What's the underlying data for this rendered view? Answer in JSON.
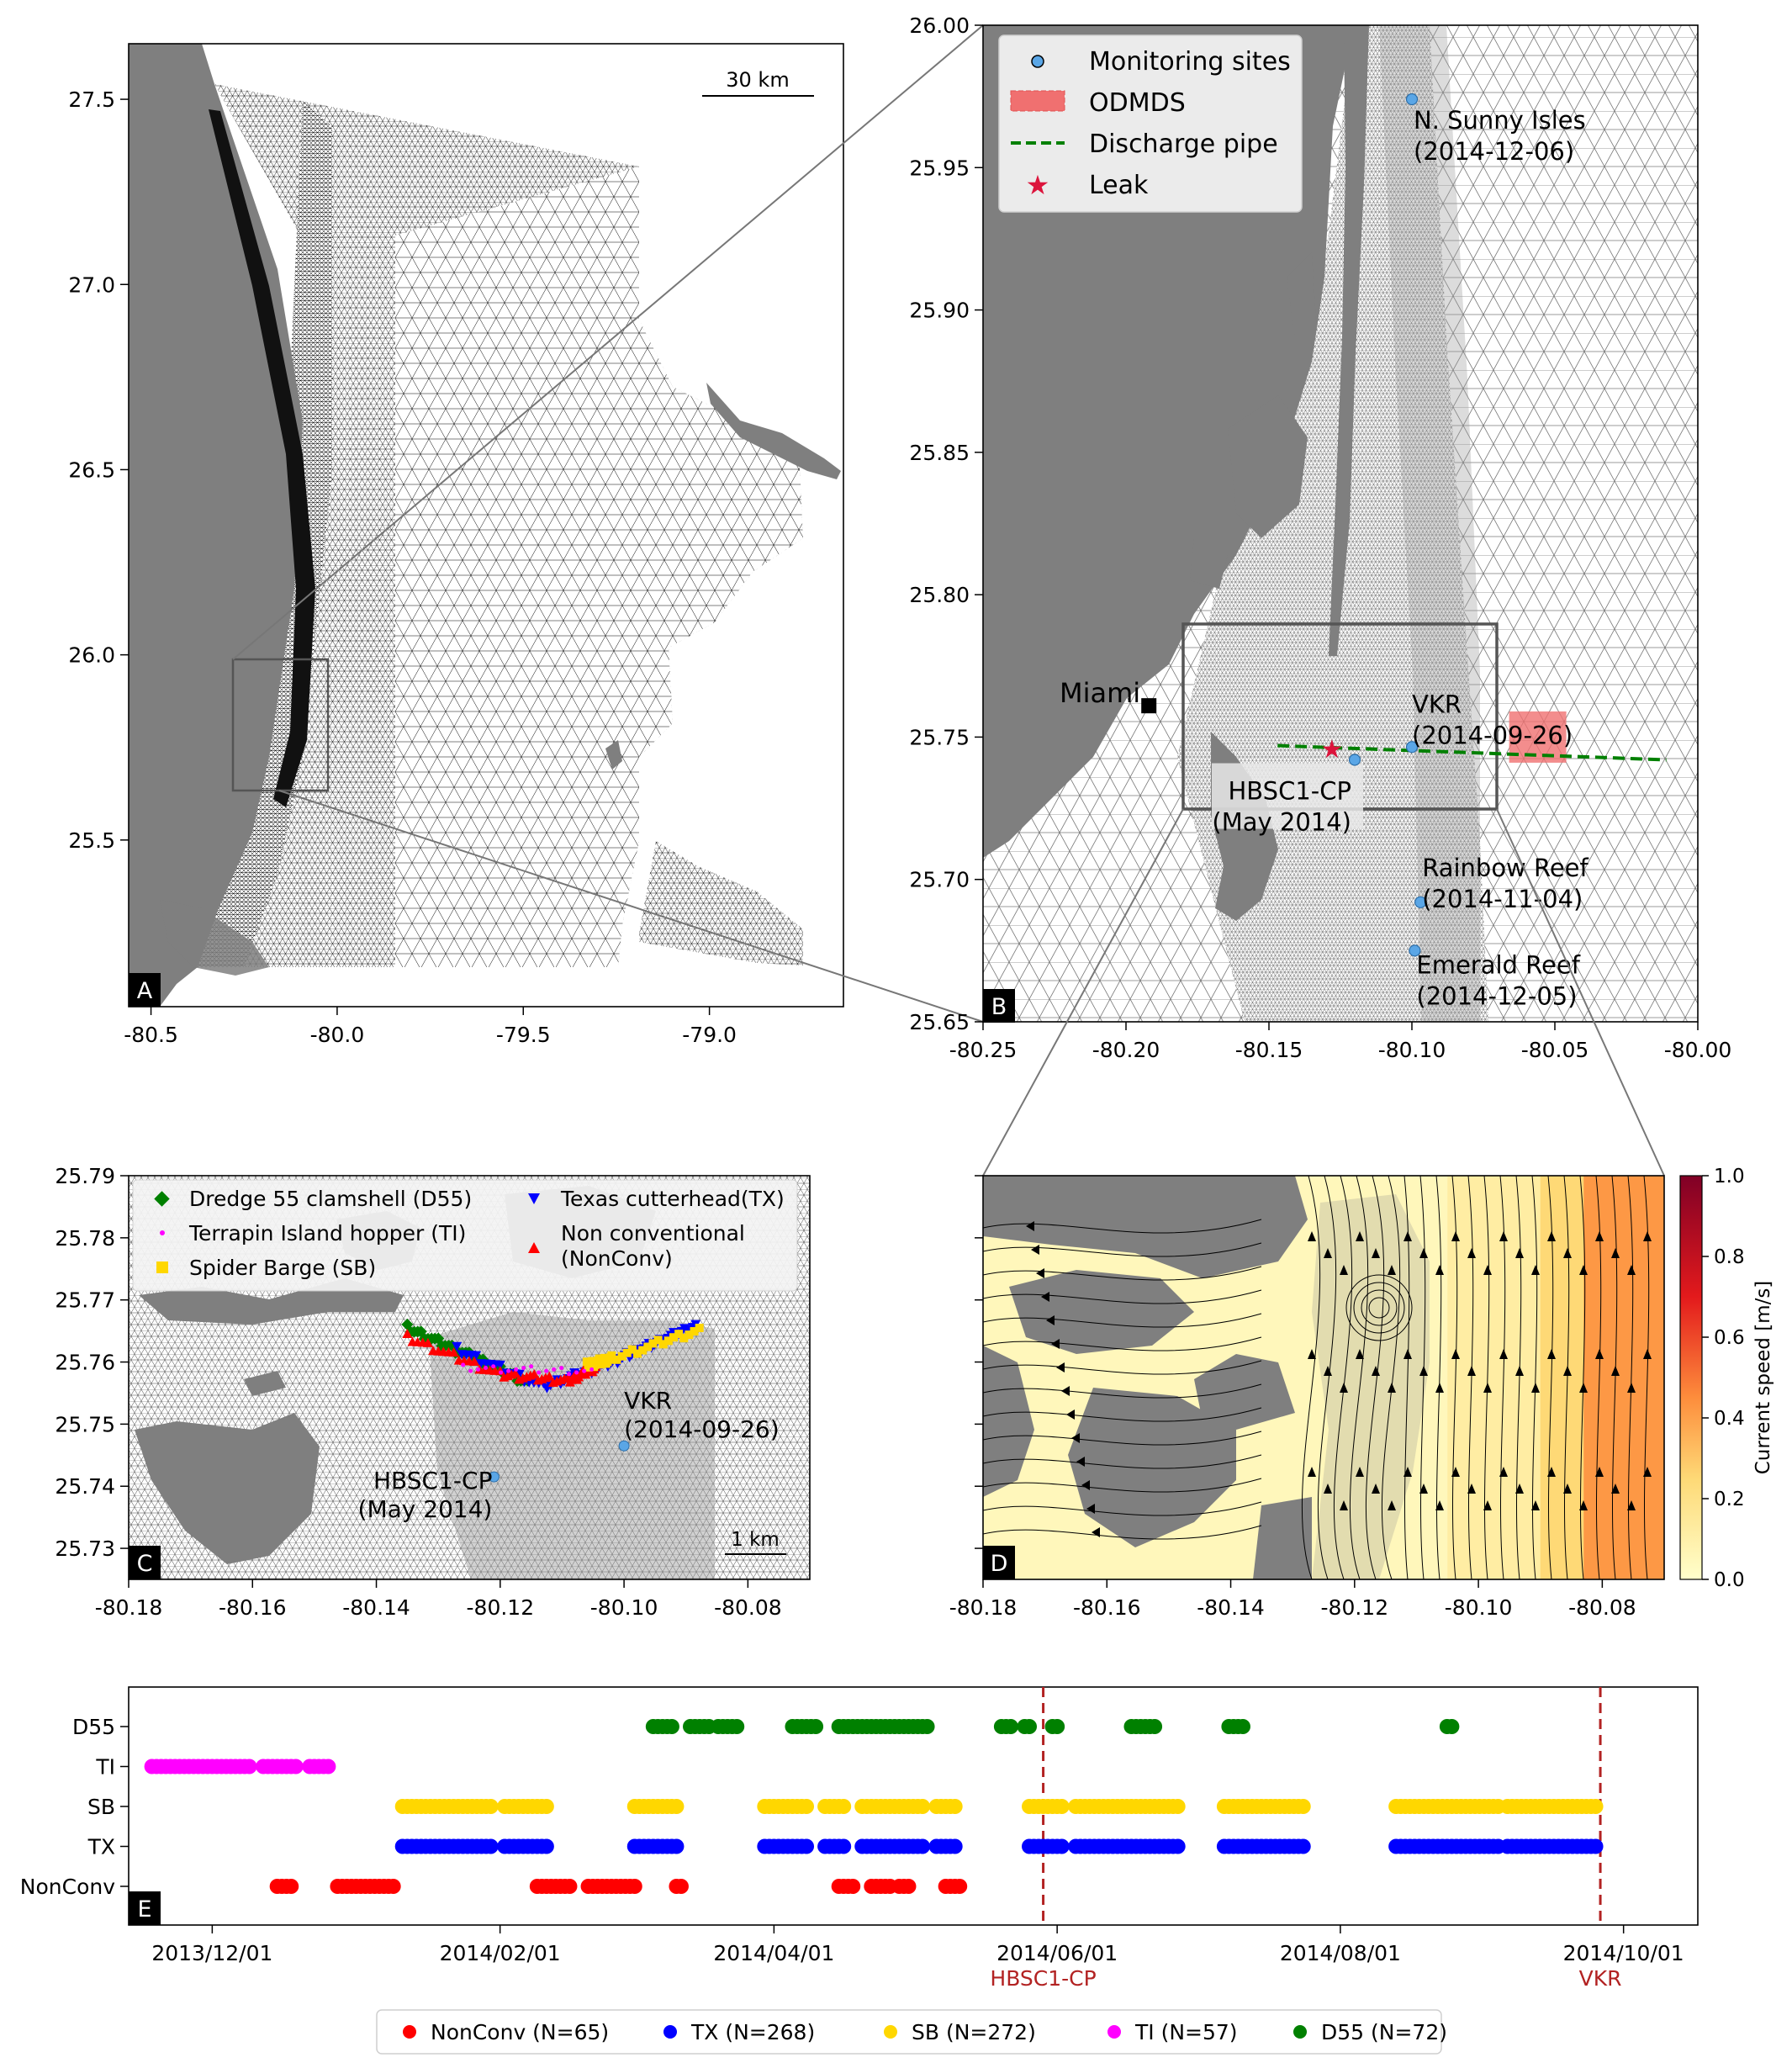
{
  "colors": {
    "land": "#7f7f7f",
    "mesh": "#000000",
    "nonconv": "#ff0000",
    "tx": "#0000ff",
    "sb": "#ffd700",
    "ti": "#ff00ff",
    "d55": "#008000",
    "monitoring": "#5aa6e6",
    "odmds": "#f07070",
    "pipe": "#008000",
    "leak": "#dc143c",
    "date_line": "#b22222"
  },
  "chart_data": [
    {
      "panel": "A",
      "type": "map",
      "panel_label": "A",
      "xticks": [
        "-80.5",
        "-80.0",
        "-79.5",
        "-79.0"
      ],
      "xtick_values": [
        -80.5,
        -80.0,
        -79.5,
        -79.0
      ],
      "yticks": [
        "25.5",
        "26.0",
        "26.5",
        "27.0",
        "27.5"
      ],
      "ytick_values": [
        25.5,
        26.0,
        26.5,
        27.0,
        27.5
      ],
      "xlim": [
        -80.56,
        -78.64
      ],
      "ylim": [
        25.05,
        27.65
      ],
      "scale_bar": "30 km",
      "inset_box": {
        "x": [
          -80.25,
          -80.0
        ],
        "y": [
          25.65,
          26.0
        ]
      }
    },
    {
      "panel": "B",
      "type": "map",
      "panel_label": "B",
      "xticks": [
        "-80.25",
        "-80.20",
        "-80.15",
        "-80.10",
        "-80.05",
        "-80.00"
      ],
      "xtick_values": [
        -80.25,
        -80.2,
        -80.15,
        -80.1,
        -80.05,
        -80.0
      ],
      "yticks": [
        "25.65",
        "25.70",
        "25.75",
        "25.80",
        "25.85",
        "25.90",
        "25.95",
        "26.00"
      ],
      "ytick_values": [
        25.65,
        25.7,
        25.75,
        25.8,
        25.85,
        25.9,
        25.95,
        26.0
      ],
      "xlim": [
        -80.25,
        -80.0
      ],
      "ylim": [
        25.65,
        26.0
      ],
      "legend": [
        "Monitoring sites",
        "ODMDS",
        "Discharge pipe",
        "Leak"
      ],
      "city": {
        "label": "Miami",
        "x": -80.192,
        "y": 25.761
      },
      "sites": [
        {
          "label": "N. Sunny Isles",
          "date": "(2014-12-06)",
          "x": -80.1,
          "y": 25.974
        },
        {
          "label": "VKR",
          "date": "(2014-09-26)",
          "x": -80.1,
          "y": 25.7465
        },
        {
          "label": "HBSC1-CP",
          "date": "(May 2014)",
          "x": -80.12,
          "y": 25.742
        },
        {
          "label": "Rainbow Reef",
          "date": "(2014-11-04)",
          "x": -80.097,
          "y": 25.692
        },
        {
          "label": "Emerald Reef",
          "date": "(2014-12-05)",
          "x": -80.099,
          "y": 25.675
        }
      ],
      "leak": {
        "x": -80.128,
        "y": 25.746
      },
      "pipe": [
        [
          -80.147,
          25.747
        ],
        [
          -80.011,
          25.742
        ]
      ],
      "odmds": {
        "x": [
          -80.066,
          -80.046
        ],
        "y": [
          25.741,
          25.759
        ]
      },
      "inset_box": {
        "x": [
          -80.18,
          -80.07
        ],
        "y": [
          25.725,
          25.79
        ]
      }
    },
    {
      "panel": "C",
      "type": "scatter",
      "panel_label": "C",
      "xticks": [
        "-80.18",
        "-80.16",
        "-80.14",
        "-80.12",
        "-80.10",
        "-80.08"
      ],
      "xtick_values": [
        -80.18,
        -80.16,
        -80.14,
        -80.12,
        -80.1,
        -80.08
      ],
      "yticks": [
        "25.73",
        "25.74",
        "25.75",
        "25.76",
        "25.77",
        "25.78",
        "25.79"
      ],
      "ytick_values": [
        25.73,
        25.74,
        25.75,
        25.76,
        25.77,
        25.78,
        25.79
      ],
      "xlim": [
        -80.18,
        -80.07
      ],
      "ylim": [
        25.725,
        25.79
      ],
      "scale_bar": "1 km",
      "legend": [
        "Dredge 55 clamshell (D55)",
        "Terrapin Island hopper (TI)",
        "Spider Barge (SB)",
        "Texas cutterhead(TX)",
        "Non conventional",
        "(NonConv)"
      ],
      "sites": [
        {
          "label": "VKR",
          "date": "(2014-09-26)",
          "x": -80.1,
          "y": 25.7465
        },
        {
          "label": "HBSC1-CP",
          "date": "(May 2014)",
          "x": -80.121,
          "y": 25.7415
        }
      ],
      "series": [
        {
          "name": "D55",
          "path": [
            [
              -80.135,
              25.7655
            ],
            [
              -80.125,
              25.761
            ],
            [
              -80.115,
              25.7565
            ]
          ]
        },
        {
          "name": "TX",
          "path": [
            [
              -80.127,
              25.762
            ],
            [
              -80.113,
              25.756
            ],
            [
              -80.103,
              25.7595
            ],
            [
              -80.096,
              25.7625
            ],
            [
              -80.088,
              25.766
            ]
          ]
        },
        {
          "name": "NonConv",
          "path": [
            [
              -80.135,
              25.764
            ],
            [
              -80.12,
              25.758
            ],
            [
              -80.109,
              25.757
            ],
            [
              -80.104,
              25.7595
            ]
          ]
        },
        {
          "name": "SB",
          "path": [
            [
              -80.106,
              25.7595
            ],
            [
              -80.102,
              25.7605
            ],
            [
              -80.087,
              25.7655
            ]
          ]
        },
        {
          "name": "TI",
          "path": [
            [
              -80.126,
              25.759
            ],
            [
              -80.104,
              25.7585
            ]
          ]
        }
      ]
    },
    {
      "panel": "D",
      "type": "heatmap",
      "panel_label": "D",
      "xticks": [
        "-80.18",
        "-80.16",
        "-80.14",
        "-80.12",
        "-80.10",
        "-80.08"
      ],
      "xtick_values": [
        -80.18,
        -80.16,
        -80.14,
        -80.12,
        -80.1,
        -80.08
      ],
      "xlim": [
        -80.18,
        -80.07
      ],
      "colorbar_label": "Current speed [m/s]",
      "colorbar_ticks": [
        "0.0",
        "0.2",
        "0.4",
        "0.6",
        "0.8",
        "1.0"
      ],
      "colorbar_range": [
        0.0,
        1.0
      ],
      "speed_bands": [
        {
          "x_from": -80.18,
          "x_to": -80.105,
          "speed": 0.05
        },
        {
          "x_from": -80.105,
          "x_to": -80.09,
          "speed": 0.12
        },
        {
          "x_from": -80.09,
          "x_to": -80.083,
          "speed": 0.25
        },
        {
          "x_from": -80.083,
          "x_to": -80.07,
          "speed": 0.42
        }
      ]
    },
    {
      "panel": "E",
      "type": "scatter",
      "panel_label": "E",
      "categories": [
        "D55",
        "TI",
        "SB",
        "TX",
        "NonConv"
      ],
      "xticks": [
        "2013/12/01",
        "2014/02/01",
        "2014/04/01",
        "2014/06/01",
        "2014/08/01",
        "2014/10/01"
      ],
      "xtick_values": [
        "2013-12-01",
        "2014-02-01",
        "2014-04-01",
        "2014-06-01",
        "2014-08-01",
        "2014-10-01"
      ],
      "xlim": [
        "2013-11-13",
        "2014-10-17"
      ],
      "vlines": [
        {
          "date": "2014-05-29",
          "label": "HBSC1-CP"
        },
        {
          "date": "2014-09-26",
          "label": "VKR"
        }
      ],
      "legend": [
        "NonConv (N=65)",
        "TX (N=268)",
        "SB (N=272)",
        "TI (N=57)",
        "D55 (N=72)"
      ],
      "series": [
        {
          "name": "D55",
          "runs": [
            [
              "2014-03-06",
              "2014-03-10"
            ],
            [
              "2014-03-14",
              "2014-03-18"
            ],
            [
              "2014-03-20",
              "2014-03-24"
            ],
            [
              "2014-04-05",
              "2014-04-10"
            ],
            [
              "2014-04-15",
              "2014-05-04"
            ],
            [
              "2014-05-20",
              "2014-05-22"
            ],
            [
              "2014-05-25",
              "2014-05-26"
            ],
            [
              "2014-05-31",
              "2014-06-01"
            ],
            [
              "2014-06-17",
              "2014-06-22"
            ],
            [
              "2014-07-08",
              "2014-07-11"
            ],
            [
              "2014-08-24",
              "2014-08-25"
            ]
          ]
        },
        {
          "name": "TI",
          "runs": [
            [
              "2013-11-18",
              "2013-12-09"
            ],
            [
              "2013-12-12",
              "2013-12-19"
            ],
            [
              "2013-12-22",
              "2013-12-26"
            ]
          ]
        },
        {
          "name": "SB",
          "runs": [
            [
              "2014-01-11",
              "2014-01-30"
            ],
            [
              "2014-02-02",
              "2014-02-11"
            ],
            [
              "2014-03-02",
              "2014-03-11"
            ],
            [
              "2014-03-30",
              "2014-04-08"
            ],
            [
              "2014-04-12",
              "2014-04-16"
            ],
            [
              "2014-04-20",
              "2014-05-03"
            ],
            [
              "2014-05-06",
              "2014-05-10"
            ],
            [
              "2014-05-26",
              "2014-06-02"
            ],
            [
              "2014-06-05",
              "2014-06-27"
            ],
            [
              "2014-07-07",
              "2014-07-24"
            ],
            [
              "2014-08-13",
              "2014-09-04"
            ],
            [
              "2014-09-06",
              "2014-09-25"
            ]
          ]
        },
        {
          "name": "TX",
          "runs": [
            [
              "2014-01-11",
              "2014-01-30"
            ],
            [
              "2014-02-02",
              "2014-02-11"
            ],
            [
              "2014-03-02",
              "2014-03-11"
            ],
            [
              "2014-03-30",
              "2014-04-08"
            ],
            [
              "2014-04-12",
              "2014-04-16"
            ],
            [
              "2014-04-20",
              "2014-05-03"
            ],
            [
              "2014-05-06",
              "2014-05-10"
            ],
            [
              "2014-05-26",
              "2014-06-02"
            ],
            [
              "2014-06-05",
              "2014-06-27"
            ],
            [
              "2014-07-07",
              "2014-07-24"
            ],
            [
              "2014-08-13",
              "2014-09-04"
            ],
            [
              "2014-09-06",
              "2014-09-25"
            ]
          ]
        },
        {
          "name": "NonConv",
          "runs": [
            [
              "2013-12-15",
              "2013-12-18"
            ],
            [
              "2013-12-28",
              "2014-01-09"
            ],
            [
              "2014-02-09",
              "2014-02-16"
            ],
            [
              "2014-02-20",
              "2014-03-02"
            ],
            [
              "2014-03-11",
              "2014-03-12"
            ],
            [
              "2014-04-15",
              "2014-04-18"
            ],
            [
              "2014-04-22",
              "2014-04-26"
            ],
            [
              "2014-04-28",
              "2014-04-30"
            ],
            [
              "2014-05-08",
              "2014-05-11"
            ]
          ]
        }
      ]
    }
  ]
}
